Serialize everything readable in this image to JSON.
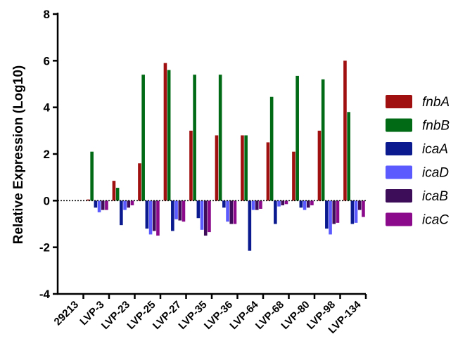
{
  "chart_data": {
    "type": "bar",
    "title": "",
    "xlabel": "",
    "ylabel": "Relative Expression (Log10)",
    "ylim": [
      -4,
      8
    ],
    "yticks": [
      -4,
      -2,
      0,
      2,
      4,
      6,
      8
    ],
    "ytick_labels": [
      "-4",
      "-2",
      "0",
      "2",
      "4",
      "6",
      "8"
    ],
    "grid": false,
    "legend_position": "right",
    "categories": [
      "29213",
      "LVP-3",
      "LVP-23",
      "LVP-25",
      "LVP-27",
      "LVP-35",
      "LVP-36",
      "LVP-64",
      "LVP-68",
      "LVP-80",
      "LVP-98",
      "LVP-134"
    ],
    "series": [
      {
        "name": "fnbA",
        "color": "#a01010",
        "values": [
          0,
          0.05,
          0.85,
          1.6,
          5.9,
          3.0,
          2.8,
          2.8,
          2.5,
          2.1,
          3.0,
          6.0
        ]
      },
      {
        "name": "fnbB",
        "color": "#006a14",
        "values": [
          0,
          2.1,
          0.55,
          5.4,
          5.6,
          5.4,
          5.4,
          2.8,
          4.45,
          5.35,
          5.2,
          3.8
        ]
      },
      {
        "name": "icaA",
        "color": "#0b1a8f",
        "values": [
          0,
          -0.3,
          -1.05,
          -1.2,
          -1.3,
          -0.75,
          -0.3,
          -2.15,
          -1.0,
          -0.3,
          -1.2,
          -1.0
        ]
      },
      {
        "name": "icaD",
        "color": "#5a5aff",
        "values": [
          0,
          -0.5,
          -0.4,
          -1.45,
          -0.8,
          -1.25,
          -0.9,
          -0.4,
          -0.25,
          -0.4,
          -1.45,
          -0.95
        ]
      },
      {
        "name": "icaB",
        "color": "#3d0d5a",
        "values": [
          0,
          -0.4,
          -0.3,
          -1.3,
          -0.85,
          -1.5,
          -1.0,
          -0.4,
          -0.2,
          -0.3,
          -1.0,
          -0.4
        ]
      },
      {
        "name": "icaC",
        "color": "#8b0a8b",
        "values": [
          0,
          -0.4,
          -0.2,
          -1.5,
          -0.9,
          -1.35,
          -1.0,
          -0.35,
          -0.15,
          -0.2,
          -0.95,
          -0.7
        ]
      }
    ]
  }
}
